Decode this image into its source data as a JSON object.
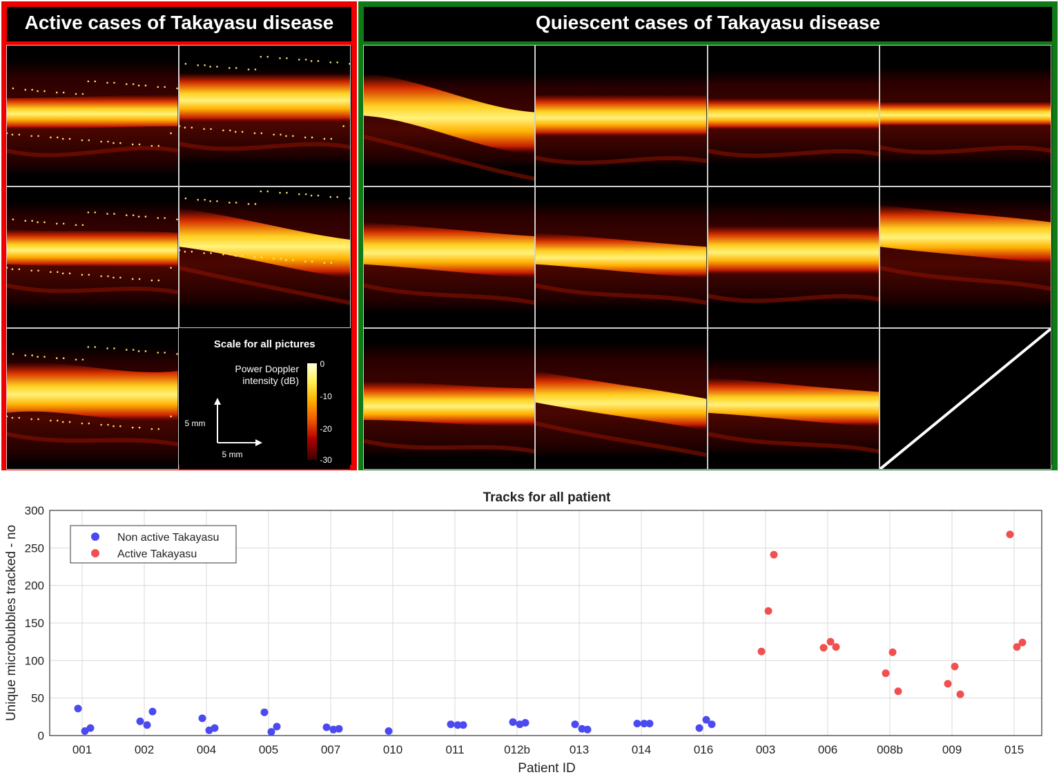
{
  "active_panel": {
    "title": "Active cases of Takayasu disease",
    "scale_title": "Scale for all pictures",
    "colorbar_label_line1": "Power Doppler",
    "colorbar_label_line2": "intensity (dB)",
    "colorbar_ticks": [
      "0",
      "-10",
      "-20",
      "-30"
    ],
    "scale_x": "5 mm",
    "scale_y": "5 mm"
  },
  "quiescent_panel": {
    "title": "Quiescent cases of Takayasu disease"
  },
  "colors": {
    "active_border": "#f00000",
    "quiescent_border": "#0f7a16",
    "non_active": "#4a4af0",
    "active": "#f05050"
  },
  "chart_data": {
    "type": "scatter",
    "title": "Tracks for all patient",
    "xlabel": "Patient ID",
    "ylabel": "Unique microbubbles tracked - no",
    "ylim": [
      0,
      300
    ],
    "yticks": [
      0,
      50,
      100,
      150,
      200,
      250,
      300
    ],
    "grid": true,
    "legend_position": "top-left",
    "categories": [
      "001",
      "002",
      "004",
      "005",
      "007",
      "010",
      "011",
      "012b",
      "013",
      "014",
      "016",
      "003",
      "006",
      "008b",
      "009",
      "015"
    ],
    "series": [
      {
        "name": "Non active Takayasu",
        "points": [
          {
            "x": "001",
            "y": 36
          },
          {
            "x": "001",
            "y": 6
          },
          {
            "x": "001",
            "y": 10
          },
          {
            "x": "002",
            "y": 19
          },
          {
            "x": "002",
            "y": 14
          },
          {
            "x": "002",
            "y": 32
          },
          {
            "x": "004",
            "y": 23
          },
          {
            "x": "004",
            "y": 7
          },
          {
            "x": "004",
            "y": 10
          },
          {
            "x": "005",
            "y": 31
          },
          {
            "x": "005",
            "y": 5
          },
          {
            "x": "005",
            "y": 12
          },
          {
            "x": "007",
            "y": 11
          },
          {
            "x": "007",
            "y": 8
          },
          {
            "x": "007",
            "y": 9
          },
          {
            "x": "010",
            "y": 6
          },
          {
            "x": "011",
            "y": 15
          },
          {
            "x": "011",
            "y": 14
          },
          {
            "x": "011",
            "y": 14
          },
          {
            "x": "012b",
            "y": 18
          },
          {
            "x": "012b",
            "y": 15
          },
          {
            "x": "012b",
            "y": 17
          },
          {
            "x": "013",
            "y": 15
          },
          {
            "x": "013",
            "y": 9
          },
          {
            "x": "013",
            "y": 8
          },
          {
            "x": "014",
            "y": 16
          },
          {
            "x": "014",
            "y": 16
          },
          {
            "x": "014",
            "y": 16
          },
          {
            "x": "016",
            "y": 10
          },
          {
            "x": "016",
            "y": 21
          },
          {
            "x": "016",
            "y": 15
          }
        ]
      },
      {
        "name": "Active Takayasu",
        "points": [
          {
            "x": "003",
            "y": 112
          },
          {
            "x": "003",
            "y": 166
          },
          {
            "x": "003",
            "y": 241
          },
          {
            "x": "006",
            "y": 117
          },
          {
            "x": "006",
            "y": 125
          },
          {
            "x": "006",
            "y": 118
          },
          {
            "x": "008b",
            "y": 83
          },
          {
            "x": "008b",
            "y": 111
          },
          {
            "x": "008b",
            "y": 59
          },
          {
            "x": "009",
            "y": 69
          },
          {
            "x": "009",
            "y": 92
          },
          {
            "x": "009",
            "y": 55
          },
          {
            "x": "015",
            "y": 268
          },
          {
            "x": "015",
            "y": 118
          },
          {
            "x": "015",
            "y": 124
          }
        ]
      }
    ]
  }
}
